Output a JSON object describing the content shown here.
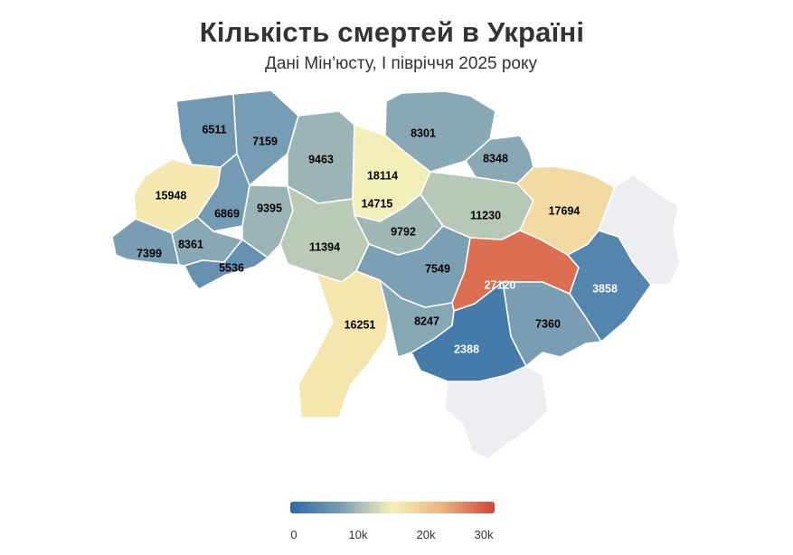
{
  "title": "Кількість смертей в Україні",
  "subtitle": "Дані Мін’юсту, І півріччя 2025 року",
  "legend": {
    "min": 0,
    "max": 30000,
    "ticks": [
      "0",
      "10k",
      "20k",
      "30k"
    ],
    "colors": [
      "#2c6aa6",
      "#7a9fb4",
      "#f7f1b8",
      "#eab27d",
      "#d44337"
    ]
  },
  "regions": [
    {
      "id": "volyn",
      "value": 6511,
      "label": "6511"
    },
    {
      "id": "rivne",
      "value": 7159,
      "label": "7159"
    },
    {
      "id": "zhytomyr",
      "value": 9463,
      "label": "9463"
    },
    {
      "id": "kyiv-city",
      "value": 18114,
      "label": "18114"
    },
    {
      "id": "kyiv-oblast",
      "value": 14715,
      "label": "14715"
    },
    {
      "id": "chernihiv",
      "value": 8301,
      "label": "8301"
    },
    {
      "id": "sumy",
      "value": 8348,
      "label": "8348"
    },
    {
      "id": "lviv",
      "value": 15948,
      "label": "15948"
    },
    {
      "id": "ternopil",
      "value": 6869,
      "label": "6869"
    },
    {
      "id": "khmelnytskyi",
      "value": 9395,
      "label": "9395"
    },
    {
      "id": "poltava",
      "value": 11230,
      "label": "11230"
    },
    {
      "id": "kharkiv",
      "value": 17694,
      "label": "17694"
    },
    {
      "id": "zakarpattia",
      "value": 7399,
      "label": "7399"
    },
    {
      "id": "ivano-frankivsk",
      "value": 8361,
      "label": "8361"
    },
    {
      "id": "chernivtsi",
      "value": 5536,
      "label": "5536"
    },
    {
      "id": "vinnytsia",
      "value": 11394,
      "label": "11394"
    },
    {
      "id": "cherkasy",
      "value": 9792,
      "label": "9792"
    },
    {
      "id": "kirovohrad",
      "value": 7549,
      "label": "7549"
    },
    {
      "id": "dnipropetrovsk",
      "value": 27120,
      "label": "27120"
    },
    {
      "id": "donetsk",
      "value": 3858,
      "label": "3858"
    },
    {
      "id": "luhansk",
      "value": null,
      "label": ""
    },
    {
      "id": "odesa",
      "value": 16251,
      "label": "16251"
    },
    {
      "id": "mykolaiv",
      "value": 8247,
      "label": "8247"
    },
    {
      "id": "zaporizhzhia",
      "value": 7360,
      "label": "7360"
    },
    {
      "id": "kherson",
      "value": 2388,
      "label": "2388"
    },
    {
      "id": "crimea",
      "value": null,
      "label": ""
    }
  ]
}
